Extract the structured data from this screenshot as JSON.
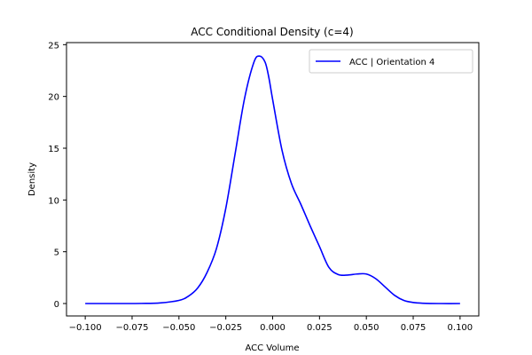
{
  "chart_data": {
    "type": "line",
    "title": "ACC Conditional Density (c=4)",
    "xlabel": "ACC Volume",
    "ylabel": "Density",
    "xlim": [
      -0.11,
      0.11
    ],
    "ylim": [
      -1.2,
      25.2
    ],
    "xticks": [
      -0.1,
      -0.075,
      -0.05,
      -0.025,
      0.0,
      0.025,
      0.05,
      0.075,
      0.1
    ],
    "xtick_labels": [
      "−0.100",
      "−0.075",
      "−0.050",
      "−0.025",
      "0.000",
      "0.025",
      "0.050",
      "0.075",
      "0.100"
    ],
    "yticks": [
      0,
      5,
      10,
      15,
      20,
      25
    ],
    "ytick_labels": [
      "0",
      "5",
      "10",
      "15",
      "20",
      "25"
    ],
    "grid": false,
    "legend_position": "top-right",
    "series": [
      {
        "name": "ACC | Orientation 4",
        "color": "#0000ff",
        "x": [
          -0.1,
          -0.09,
          -0.08,
          -0.07,
          -0.06,
          -0.05,
          -0.045,
          -0.04,
          -0.035,
          -0.03,
          -0.025,
          -0.02,
          -0.015,
          -0.01,
          -0.007,
          -0.004,
          -0.002,
          0.0,
          0.005,
          0.01,
          0.015,
          0.02,
          0.025,
          0.03,
          0.035,
          0.04,
          0.045,
          0.05,
          0.055,
          0.06,
          0.065,
          0.07,
          0.075,
          0.08,
          0.09,
          0.1
        ],
        "y": [
          0.0,
          0.0,
          0.0,
          0.01,
          0.06,
          0.3,
          0.7,
          1.5,
          3.0,
          5.3,
          9.2,
          14.5,
          19.8,
          23.3,
          23.9,
          23.3,
          21.8,
          19.7,
          14.8,
          11.6,
          9.6,
          7.5,
          5.5,
          3.5,
          2.8,
          2.75,
          2.85,
          2.85,
          2.4,
          1.6,
          0.8,
          0.3,
          0.1,
          0.03,
          0.0,
          0.0
        ]
      }
    ]
  }
}
